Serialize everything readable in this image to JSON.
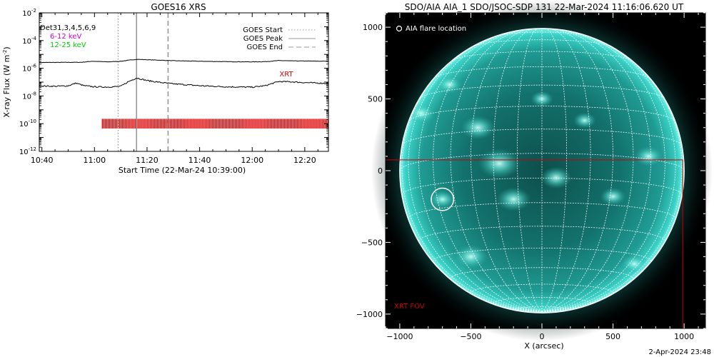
{
  "footer_timestamp": "2-Apr-2024 23:48",
  "chart_data": [
    {
      "type": "line",
      "title": "GOES16 XRS",
      "xlabel": "Start Time (22-Mar-24 10:39:00)",
      "ylabel_main": "X-ray Flux (W m",
      "ylabel_sup": "-2",
      "ylabel_close": ")",
      "log_y": true,
      "ylim_exp": [
        -12,
        -2
      ],
      "ytick_exps": [
        -12,
        -10,
        -8,
        -6,
        -4,
        -2
      ],
      "ytick_labels": [
        {
          "base": "10",
          "exp": "-12"
        },
        {
          "base": "10",
          "exp": "-10"
        },
        {
          "base": "10",
          "exp": "-8"
        },
        {
          "base": "10",
          "exp": "-6"
        },
        {
          "base": "10",
          "exp": "-4"
        },
        {
          "base": "10",
          "exp": "-2"
        }
      ],
      "xlim": [
        "10:39",
        "12:29"
      ],
      "xticks": [
        "10:40",
        "11:00",
        "11:20",
        "11:40",
        "12:00",
        "12:20"
      ],
      "detector_label": "Det31,3,4,5,6,9",
      "channels": [
        {
          "name": "6-12 keV",
          "color": "#cc00cc"
        },
        {
          "name": "12-25 keV",
          "color": "#00cc00"
        }
      ],
      "markers": [
        {
          "name": "GOES Start",
          "time": "11:09",
          "style": "dotted",
          "color": "#999999"
        },
        {
          "name": "GOES Peak",
          "time": "11:16",
          "style": "solid",
          "color": "#999999"
        },
        {
          "name": "GOES End",
          "time": "11:28",
          "style": "dashed",
          "color": "#999999"
        }
      ],
      "xrt_label": "XRT",
      "xrt_label_color": "#dd0000",
      "xrt_interval": [
        "11:03",
        "12:29"
      ],
      "series": [
        {
          "band": "long",
          "points": [
            [
              "10:39",
              2.6e-06
            ],
            [
              "10:55",
              2.7e-06
            ],
            [
              "10:59",
              3.2e-06
            ],
            [
              "11:05",
              2.9e-06
            ],
            [
              "11:10",
              3.2e-06
            ],
            [
              "11:13",
              3.8e-06
            ],
            [
              "11:16",
              4.4e-06
            ],
            [
              "11:22",
              4e-06
            ],
            [
              "11:30",
              3.5e-06
            ],
            [
              "11:40",
              3.2e-06
            ],
            [
              "11:50",
              3e-06
            ],
            [
              "12:00",
              2.9e-06
            ],
            [
              "12:05",
              3e-06
            ],
            [
              "12:10",
              3.6e-06
            ],
            [
              "12:15",
              3.4e-06
            ],
            [
              "12:29",
              3.2e-06
            ]
          ]
        },
        {
          "band": "short",
          "points": [
            [
              "10:39",
              5.3e-08
            ],
            [
              "10:45",
              5e-08
            ],
            [
              "10:50",
              5.4e-08
            ],
            [
              "10:53",
              8.5e-08
            ],
            [
              "10:56",
              5.5e-08
            ],
            [
              "11:00",
              4.6e-08
            ],
            [
              "11:05",
              4.4e-08
            ],
            [
              "11:10",
              5e-08
            ],
            [
              "11:13",
              1.1e-07
            ],
            [
              "11:16",
              2e-07
            ],
            [
              "11:20",
              1.3e-07
            ],
            [
              "11:25",
              9.5e-08
            ],
            [
              "11:30",
              7.5e-08
            ],
            [
              "11:40",
              5.5e-08
            ],
            [
              "11:50",
              4.6e-08
            ],
            [
              "12:00",
              4.3e-08
            ],
            [
              "12:05",
              5.5e-08
            ],
            [
              "12:10",
              1.1e-07
            ],
            [
              "12:15",
              1.05e-07
            ],
            [
              "12:20",
              9.2e-08
            ],
            [
              "12:29",
              8e-08
            ]
          ]
        }
      ]
    },
    {
      "type": "image",
      "title": "SDO/AIA AIA_1 SDO/JSOC-SDP 131 22-Mar-2024 11:16:06.620 UT",
      "xlabel": "X (arcsec)",
      "xlim": [
        -1100,
        1150
      ],
      "ylim": [
        -1100,
        1100
      ],
      "xticks": [
        -1000,
        -500,
        0,
        500,
        1000
      ],
      "yticks": [
        -1000,
        -500,
        0,
        500,
        1000
      ],
      "legend": "AIA flare location",
      "disk_radius_arcsec": 1000,
      "disk_color": "#22b8b0",
      "flare_location": [
        -700,
        -200
      ],
      "flare_circle_radius_arcsec": 75,
      "fov_label": "XRT FOV",
      "fov_color": "#cc0000",
      "fov_box": {
        "x0": -1100,
        "x1": 990,
        "y0": -1100,
        "y1": 75
      }
    }
  ]
}
